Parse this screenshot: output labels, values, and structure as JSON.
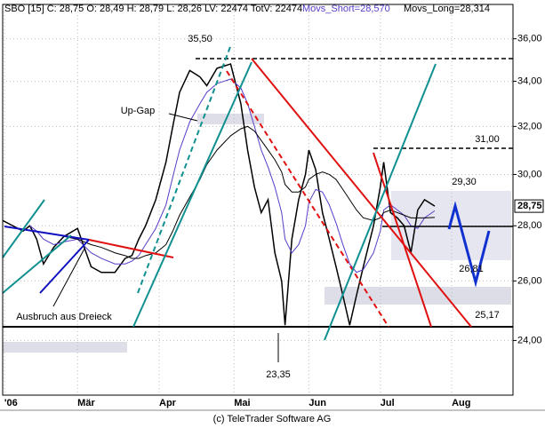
{
  "chart_data": {
    "type": "line",
    "header": [
      "SBO [15] C: 28,75 O: 28,49 H: 28,79 L: 28,26 LV: 22474 TotV: 22474",
      "Movs_Short=28,570",
      "Movs_Long=28,314"
    ],
    "footer": "(c) TeleTrader Software AG",
    "log_scale": true,
    "grid": true,
    "xlim": [
      0,
      150
    ],
    "xticks": [
      {
        "value": 0.5,
        "label": "'06"
      },
      {
        "value": 22,
        "label": "Mär"
      },
      {
        "value": 46,
        "label": "Apr"
      },
      {
        "value": 68,
        "label": "Mai"
      },
      {
        "value": 90,
        "label": "Jun"
      },
      {
        "value": 111,
        "label": "Jul"
      },
      {
        "value": 132,
        "label": "Aug"
      }
    ],
    "ylim": [
      22.3,
      37.7
    ],
    "yticks": [
      {
        "value": 24,
        "label": "24,00"
      },
      {
        "value": 26,
        "label": "26,00"
      },
      {
        "value": 28,
        "label": "28,00"
      },
      {
        "value": 30,
        "label": "30,00"
      },
      {
        "value": 32,
        "label": "32,00"
      },
      {
        "value": 34,
        "label": "34,00"
      },
      {
        "value": 36,
        "label": "36,00"
      }
    ],
    "last_price": {
      "value": 28.75,
      "label": "28,75"
    },
    "x": [
      0,
      3,
      6,
      8,
      10,
      12,
      15,
      18,
      22,
      26,
      29,
      33,
      36,
      38,
      40,
      42,
      45,
      48,
      50,
      52,
      55,
      58,
      60,
      63,
      67,
      70,
      72,
      74,
      76,
      78,
      80,
      82,
      83,
      85,
      87,
      89,
      90,
      92,
      94,
      96,
      98,
      100,
      102,
      104,
      106,
      109,
      111,
      112,
      114,
      116,
      118,
      120,
      122,
      124,
      127
    ],
    "series": [
      {
        "name": "SBO",
        "color": "#000000",
        "values": [
          28.2,
          28.0,
          27.8,
          28.0,
          27.5,
          26.6,
          27.2,
          27.6,
          27.9,
          26.5,
          26.3,
          26.3,
          26.8,
          26.9,
          27.5,
          28.0,
          29.0,
          30.5,
          32.0,
          33.5,
          34.5,
          34.2,
          33.8,
          34.6,
          34.8,
          33.0,
          31.0,
          29.5,
          28.5,
          29.0,
          27.0,
          26.0,
          24.5,
          27.5,
          29.0,
          30.0,
          31.0,
          30.2,
          28.5,
          27.5,
          26.5,
          25.5,
          24.5,
          25.5,
          26.5,
          28.0,
          29.5,
          30.5,
          28.5,
          28.3,
          28.0,
          27.0,
          28.6,
          29.0,
          28.75
        ]
      },
      {
        "name": "Movs_Short",
        "color": "#5a3cc8",
        "values": [
          null,
          null,
          null,
          28.0,
          27.8,
          27.5,
          27.3,
          27.4,
          27.5,
          27.0,
          26.8,
          26.6,
          26.6,
          26.7,
          26.9,
          27.3,
          27.9,
          28.8,
          29.9,
          31.0,
          32.2,
          33.0,
          33.5,
          33.9,
          34.1,
          33.7,
          33.0,
          32.0,
          31.0,
          30.3,
          29.5,
          28.5,
          27.5,
          27.0,
          27.3,
          28.0,
          28.9,
          29.4,
          29.3,
          28.8,
          28.1,
          27.3,
          26.6,
          26.3,
          26.4,
          27.0,
          27.8,
          28.6,
          28.8,
          28.6,
          28.4,
          28.0,
          27.9,
          28.3,
          28.57
        ]
      },
      {
        "name": "Movs_Long",
        "color": "#000000",
        "values": [
          null,
          null,
          null,
          null,
          null,
          null,
          null,
          27.6,
          27.5,
          27.3,
          27.2,
          27.0,
          26.9,
          26.8,
          26.8,
          26.9,
          27.0,
          27.3,
          27.8,
          28.4,
          29.1,
          29.8,
          30.4,
          31.0,
          31.6,
          31.9,
          32.0,
          31.8,
          31.4,
          31.0,
          30.6,
          30.1,
          29.6,
          29.3,
          29.3,
          29.5,
          29.8,
          30.0,
          30.1,
          30.0,
          29.8,
          29.4,
          29.0,
          28.6,
          28.3,
          28.2,
          28.3,
          28.5,
          28.6,
          28.5,
          28.4,
          28.3,
          28.3,
          28.3,
          28.314
        ]
      }
    ],
    "annotations": [
      "35,50",
      "Up-Gap",
      "31,00",
      "29,30",
      "26,81",
      "25,17",
      "23,35",
      "Ausbruch aus Dreieck"
    ]
  }
}
